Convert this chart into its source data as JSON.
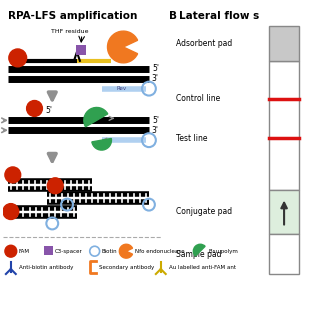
{
  "title_left": "RPA-LFS amplification",
  "title_right": "Lateral flow s",
  "label_B": "B",
  "background_color": "#ffffff",
  "color_red": "#cc2200",
  "color_orange": "#f07820",
  "color_blue_light": "#b0d0f0",
  "color_green": "#30a050",
  "color_biotin": "#80b0e0",
  "color_purple": "#8855aa",
  "color_gray_arrow": "#909090",
  "color_strip_gray": "#c0c0c0",
  "color_conjugate_bg": "#ddeedd",
  "color_line_red": "#dd1111"
}
